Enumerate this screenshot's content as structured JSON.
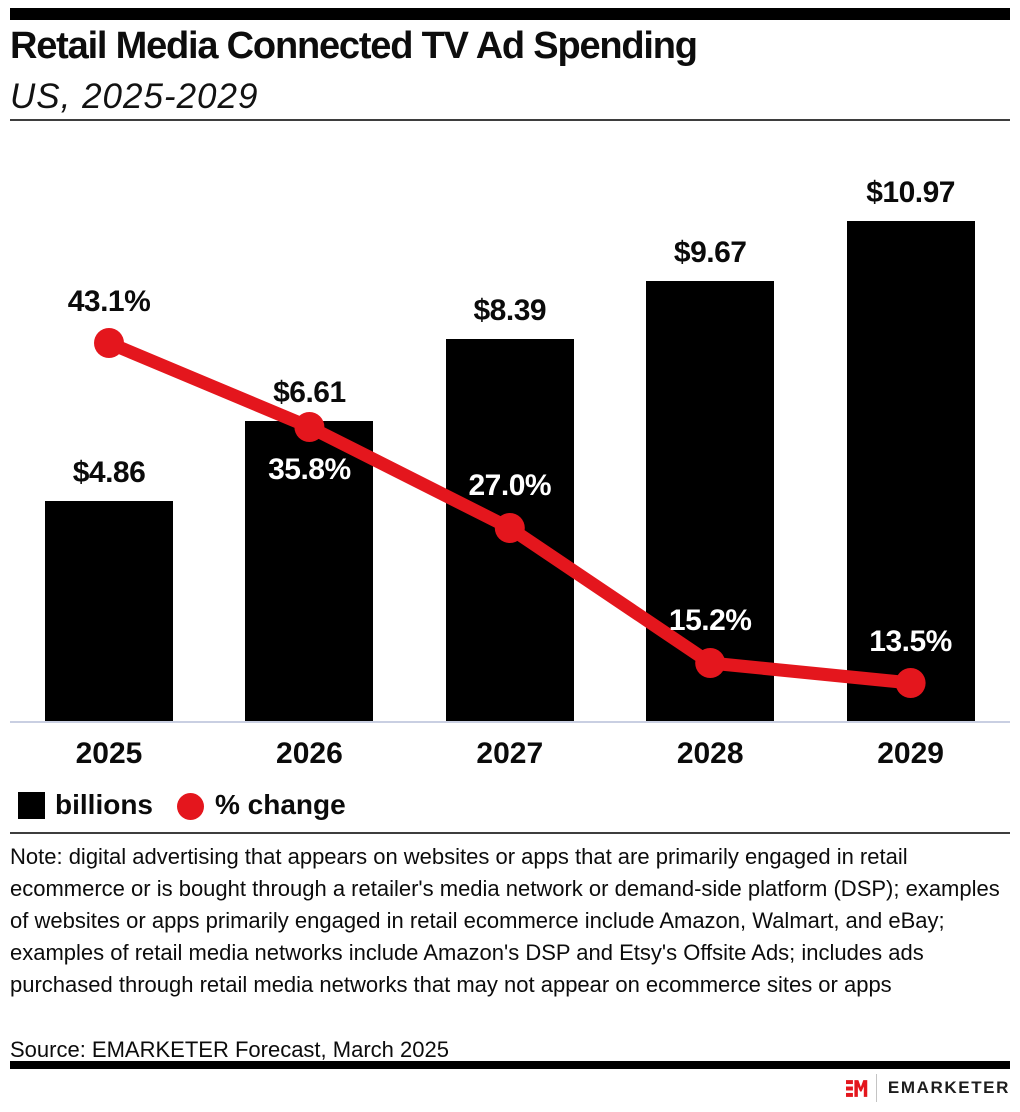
{
  "header": {
    "title": "Retail Media Connected TV Ad Spending",
    "subtitle": "US, 2025-2029"
  },
  "chart_data": {
    "type": "combo",
    "categories": [
      "2025",
      "2026",
      "2027",
      "2028",
      "2029"
    ],
    "series": [
      {
        "name": "billions",
        "type": "bar",
        "color": "#000000",
        "values": [
          4.86,
          6.61,
          8.39,
          9.67,
          10.97
        ],
        "labels": [
          "$4.86",
          "$6.61",
          "$8.39",
          "$9.67",
          "$10.97"
        ]
      },
      {
        "name": "% change",
        "type": "line",
        "color": "#e4161d",
        "values": [
          43.1,
          35.8,
          27.0,
          15.2,
          13.5
        ],
        "labels": [
          "43.1%",
          "35.8%",
          "27.0%",
          "15.2%",
          "13.5%"
        ]
      }
    ],
    "xlabel": "",
    "ylabel": "",
    "grid": false,
    "legend_position": "bottom-left",
    "bar_axis_range": [
      0,
      12
    ],
    "line_axis_range": [
      0,
      50
    ]
  },
  "legend": {
    "items": [
      {
        "label": "billions",
        "swatch": "square",
        "color": "#000000"
      },
      {
        "label": "% change",
        "swatch": "circle",
        "color": "#e4161d"
      }
    ]
  },
  "footnote": {
    "note": "Note: digital advertising that appears on websites or apps that are primarily engaged in retail ecommerce or is bought through a retailer's media network or demand-side platform (DSP); examples of websites or apps primarily engaged in retail ecommerce include Amazon, Walmart, and eBay; examples of retail media networks include Amazon's DSP and Etsy's Offsite Ads; includes ads purchased through retail media networks that may not appear on ecommerce sites or apps",
    "source": "Source: EMARKETER Forecast, March 2025"
  },
  "branding": {
    "logo": "EM",
    "wordmark": "EMARKETER"
  },
  "colors": {
    "accent_red": "#e4161d",
    "bar_black": "#000000",
    "baseline": "#c9cfe2",
    "rule": "#3e3e3e"
  }
}
